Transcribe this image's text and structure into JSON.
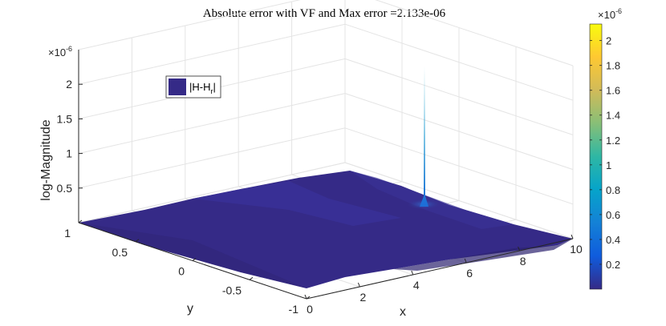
{
  "chart_data": {
    "type": "surface",
    "title": "Absolute error with VF and Max error =2.133e-06",
    "xlabel": "x",
    "ylabel": "y",
    "zlabel": "log-Magnitude",
    "xlim": [
      0,
      10
    ],
    "ylim": [
      -1,
      1
    ],
    "zlim": [
      0,
      2.133e-06
    ],
    "x_ticks": [
      "0",
      "2",
      "4",
      "6",
      "8",
      "10"
    ],
    "y_ticks": [
      "-1",
      "-0.5",
      "0",
      "0.5",
      "1"
    ],
    "z_ticks": [
      "0.5",
      "1",
      "1.5",
      "2"
    ],
    "z_multiplier": "×10",
    "z_multiplier_exp": "-6",
    "legend": {
      "label_main": "|H-H",
      "label_sub": "r",
      "label_end": "|",
      "location": "top-left",
      "color": "#352a87"
    },
    "surface": {
      "baseline_value": 5e-08,
      "ridges": [
        {
          "along": "y",
          "at_x": 4.0,
          "height": 2.5e-07
        },
        {
          "along": "y",
          "at_x": 6.3,
          "height": 1.8e-07
        },
        {
          "along": "x",
          "at_y": 0.9,
          "height": 1.2e-07
        }
      ],
      "peak": {
        "x": 10,
        "y": 0.45,
        "value": 2.133e-06
      }
    },
    "colorbar": {
      "ticks": [
        "0.2",
        "0.4",
        "0.6",
        "0.8",
        "1",
        "1.2",
        "1.4",
        "1.6",
        "1.8",
        "2"
      ],
      "range": [
        0,
        2.133e-06
      ],
      "multiplier": "×10",
      "multiplier_exp": "-6",
      "colormap": "parula",
      "colors": [
        "#352a87",
        "#0f5cdd",
        "#1481d6",
        "#06a4ca",
        "#2eb7a4",
        "#87bf77",
        "#d1bb59",
        "#fec832",
        "#f9fb0e"
      ]
    }
  }
}
